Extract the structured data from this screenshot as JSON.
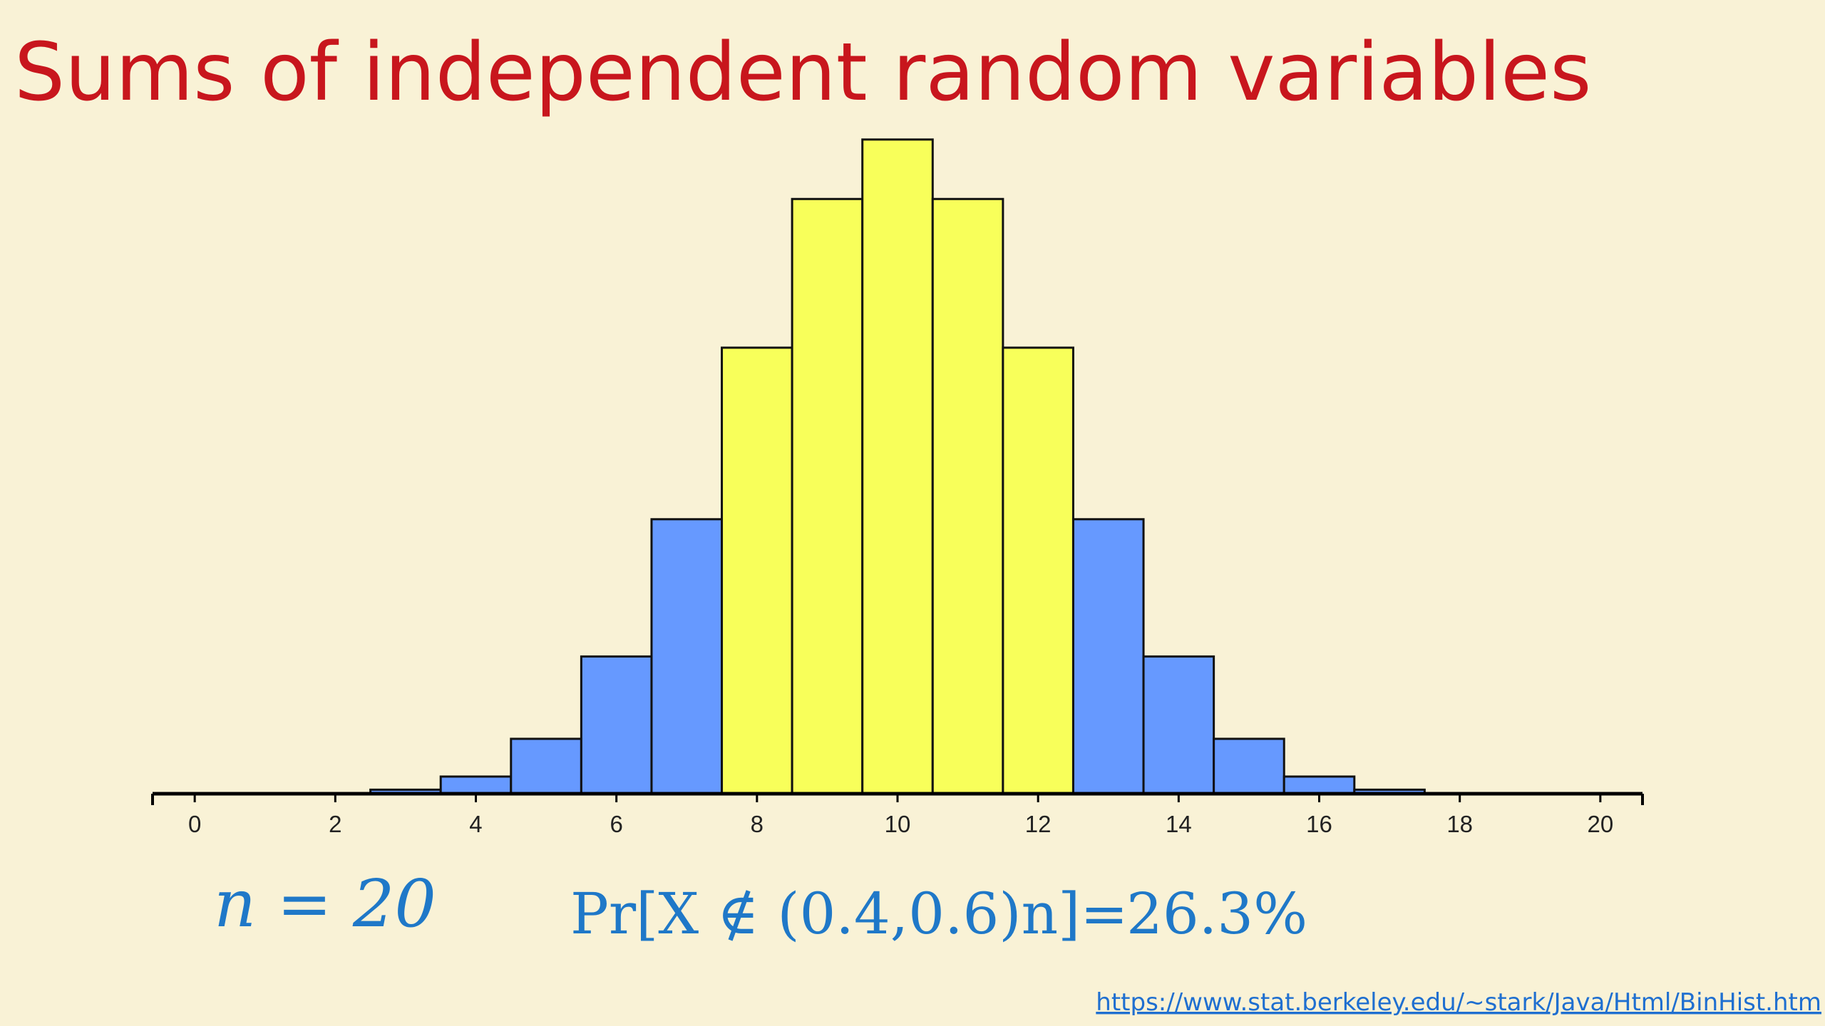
{
  "chart_data": {
    "type": "histogram",
    "title": "Sums of independent random variables",
    "x": [
      0,
      1,
      2,
      3,
      4,
      5,
      6,
      7,
      8,
      9,
      10,
      11,
      12,
      13,
      14,
      15,
      16,
      17,
      18,
      19,
      20
    ],
    "values": [
      1e-06,
      1.9e-05,
      0.000181,
      0.001087,
      0.004621,
      0.014786,
      0.036964,
      0.073929,
      0.120134,
      0.160179,
      0.176197,
      0.160179,
      0.120134,
      0.073929,
      0.036964,
      0.014786,
      0.004621,
      0.001087,
      0.000181,
      1.9e-05,
      1e-06
    ],
    "colors": [
      "#6699ff",
      "#6699ff",
      "#6699ff",
      "#6699ff",
      "#6699ff",
      "#6699ff",
      "#6699ff",
      "#6699ff",
      "#f8ff5a",
      "#f8ff5a",
      "#f8ff5a",
      "#f8ff5a",
      "#f8ff5a",
      "#6699ff",
      "#6699ff",
      "#6699ff",
      "#6699ff",
      "#6699ff",
      "#6699ff",
      "#6699ff",
      "#6699ff"
    ],
    "xlim": [
      -0.6,
      20.6
    ],
    "ylim": [
      0,
      0.18
    ],
    "xticks": [
      0,
      2,
      4,
      6,
      8,
      10,
      12,
      14,
      16,
      18,
      20
    ],
    "annotations": [
      "n = 20",
      "Pr[X ∉ (0.4,0.6)n]=",
      "26.3%"
    ],
    "source": "https://www.stat.berkeley.edu/~stark/Java/Html/BinHist.htm"
  }
}
